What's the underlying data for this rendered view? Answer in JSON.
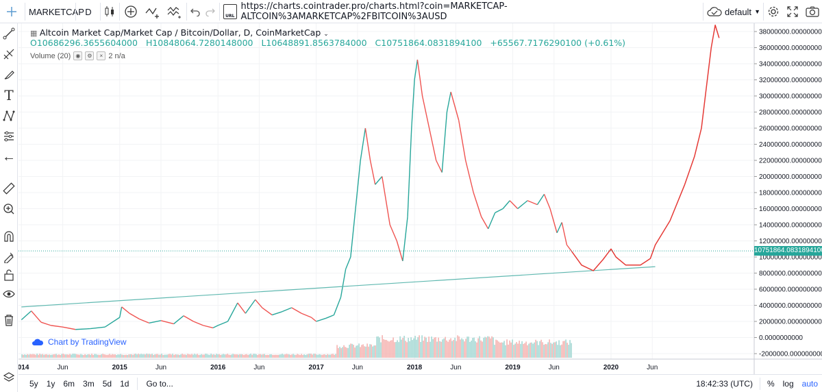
{
  "toolbar": {
    "symbol": "MARKETCAP",
    "interval": "D",
    "url": "https://charts.cointrader.pro/charts.html?coin=MARKETCAP-ALTCOIN%3AMARKETCAP%2FBITCOIN%3AUSD",
    "url_icon_text": "URL",
    "theme": "default"
  },
  "legend": {
    "title": "Altcoin Market Cap/Market Cap / Bitcoin/Dollar, D, CoinMarketCap",
    "open": "O10686296.3655604000",
    "high": "H10848064.7280148000",
    "low": "L10648891.8563784000",
    "close": "C10751864.0831894100",
    "change": "+65567.7176290100 (+0.61%)",
    "volume_label": "Volume (20)",
    "volume_value": "2  n/a"
  },
  "watermark": "Chart by TradingView",
  "bottom": {
    "ranges": [
      "5y",
      "1y",
      "6m",
      "3m",
      "5d",
      "1d"
    ],
    "goto": "Go to...",
    "time": "18:42:33 (UTC)",
    "percent": "%",
    "log": "log",
    "auto": "auto"
  },
  "colors": {
    "up": "#26a69a",
    "down": "#ef5350",
    "drawing": "#e53935",
    "trendline": "#5fb8b0",
    "accent": "#2962ff"
  },
  "chart_data": {
    "type": "line",
    "title": "Altcoin Market Cap/Market Cap / Bitcoin/Dollar, D, CoinMarketCap",
    "ylim": [
      -2000000,
      39000000
    ],
    "y_ticks": [
      38000000,
      36000000,
      34000000,
      32000000,
      30000000,
      28000000,
      26000000,
      24000000,
      22000000,
      20000000,
      18000000,
      16000000,
      14000000,
      12000000,
      10000000,
      8000000,
      6000000,
      4000000,
      2000000,
      0,
      -2000000
    ],
    "y_tick_labels": [
      "38000000.0000000000",
      "36000000.0000000000",
      "34000000.0000000000",
      "32000000.0000000000",
      "30000000.0000000000",
      "28000000.0000000000",
      "26000000.0000000000",
      "24000000.0000000000",
      "22000000.0000000000",
      "20000000.0000000000",
      "18000000.0000000000",
      "16000000.0000000000",
      "14000000.0000000000",
      "12000000.0000000000",
      "10000000.0000000000",
      "8000000.0000000000",
      "6000000.0000000000",
      "4000000.0000000000",
      "2000000.0000000000",
      "0.0000000000",
      "-2000000.0000000000"
    ],
    "x_ticks": [
      "2014",
      "Jun",
      "2015",
      "Jun",
      "2016",
      "Jun",
      "2017",
      "Jun",
      "2018",
      "Jun",
      "2019",
      "Jun",
      "2020",
      "Jun"
    ],
    "x_tick_dates": [
      2014.0,
      2014.42,
      2015.0,
      2015.42,
      2016.0,
      2016.42,
      2017.0,
      2017.42,
      2018.0,
      2018.42,
      2019.0,
      2019.42,
      2020.0,
      2020.42
    ],
    "last_price_label": "10751864.0831894100",
    "last_price": 10751864,
    "series": [
      {
        "values": [
          [
            2014.0,
            2200000
          ],
          [
            2014.1,
            3300000
          ],
          [
            2014.2,
            1900000
          ],
          [
            2014.3,
            1500000
          ],
          [
            2014.42,
            1300000
          ],
          [
            2014.55,
            1000000
          ],
          [
            2014.7,
            1100000
          ],
          [
            2014.85,
            1300000
          ],
          [
            2015.0,
            2500000
          ],
          [
            2015.02,
            3800000
          ],
          [
            2015.1,
            3000000
          ],
          [
            2015.2,
            2300000
          ],
          [
            2015.3,
            1800000
          ],
          [
            2015.42,
            2100000
          ],
          [
            2015.55,
            1700000
          ],
          [
            2015.65,
            2700000
          ],
          [
            2015.75,
            2000000
          ],
          [
            2015.85,
            1500000
          ],
          [
            2015.95,
            1200000
          ],
          [
            2016.0,
            1500000
          ],
          [
            2016.1,
            2000000
          ],
          [
            2016.2,
            4300000
          ],
          [
            2016.28,
            3000000
          ],
          [
            2016.38,
            4700000
          ],
          [
            2016.45,
            3700000
          ],
          [
            2016.55,
            2800000
          ],
          [
            2016.65,
            3200000
          ],
          [
            2016.75,
            3700000
          ],
          [
            2016.85,
            3000000
          ],
          [
            2016.95,
            2500000
          ],
          [
            2017.0,
            2000000
          ],
          [
            2017.1,
            2400000
          ],
          [
            2017.18,
            2800000
          ],
          [
            2017.25,
            5000000
          ],
          [
            2017.3,
            8500000
          ],
          [
            2017.35,
            10000000
          ],
          [
            2017.4,
            16000000
          ],
          [
            2017.45,
            22000000
          ],
          [
            2017.5,
            26000000
          ],
          [
            2017.55,
            22000000
          ],
          [
            2017.6,
            19000000
          ],
          [
            2017.67,
            20000000
          ],
          [
            2017.75,
            14000000
          ],
          [
            2017.82,
            12000000
          ],
          [
            2017.88,
            9500000
          ],
          [
            2017.93,
            15000000
          ],
          [
            2017.97,
            26000000
          ],
          [
            2018.0,
            32000000
          ],
          [
            2018.03,
            34500000
          ],
          [
            2018.08,
            30000000
          ],
          [
            2018.15,
            26000000
          ],
          [
            2018.22,
            22000000
          ],
          [
            2018.28,
            20500000
          ],
          [
            2018.33,
            28000000
          ],
          [
            2018.37,
            30500000
          ],
          [
            2018.45,
            27000000
          ],
          [
            2018.52,
            22000000
          ],
          [
            2018.6,
            18000000
          ],
          [
            2018.68,
            15000000
          ],
          [
            2018.75,
            13500000
          ],
          [
            2018.82,
            15500000
          ],
          [
            2018.9,
            16000000
          ],
          [
            2018.97,
            17000000
          ],
          [
            2019.05,
            16000000
          ],
          [
            2019.15,
            17000000
          ],
          [
            2019.25,
            16500000
          ],
          [
            2019.32,
            17800000
          ],
          [
            2019.38,
            16000000
          ],
          [
            2019.45,
            13000000
          ],
          [
            2019.5,
            14300000
          ],
          [
            2019.55,
            11500000
          ],
          [
            2019.6,
            10700000
          ]
        ]
      },
      {
        "values": [
          [
            2014.0,
            3800000
          ],
          [
            2020.45,
            8800000
          ]
        ]
      },
      {
        "values": [
          [
            2019.6,
            10700000
          ],
          [
            2019.7,
            9000000
          ],
          [
            2019.82,
            8300000
          ],
          [
            2019.92,
            9700000
          ],
          [
            2020.0,
            11000000
          ],
          [
            2020.05,
            10000000
          ],
          [
            2020.15,
            9000000
          ],
          [
            2020.3,
            9000000
          ],
          [
            2020.4,
            9800000
          ],
          [
            2020.45,
            11500000
          ],
          [
            2020.6,
            14500000
          ],
          [
            2020.75,
            19000000
          ],
          [
            2020.85,
            22500000
          ],
          [
            2020.92,
            26000000
          ],
          [
            2020.97,
            31000000
          ],
          [
            2021.02,
            36000000
          ],
          [
            2021.06,
            38800000
          ],
          [
            2021.1,
            37200000
          ]
        ]
      }
    ]
  }
}
